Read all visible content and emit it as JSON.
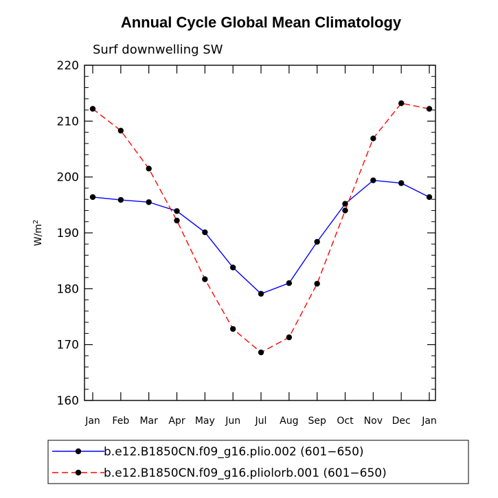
{
  "chart_data": {
    "type": "line",
    "title": "Annual Cycle Global Mean Climatology",
    "subtitle": "Surf downwelling SW",
    "ylabel": "W/m",
    "ylabel_sup": "2",
    "xlabel": "",
    "ylim": [
      160,
      220
    ],
    "yticks": [
      160,
      170,
      180,
      190,
      200,
      210,
      220
    ],
    "categories": [
      "Jan",
      "Feb",
      "Mar",
      "Apr",
      "May",
      "Jun",
      "Jul",
      "Aug",
      "Sep",
      "Oct",
      "Nov",
      "Dec",
      "Jan"
    ],
    "series": [
      {
        "name": "b.e12.B1850CN.f09_g16.plio.002 (601−650)",
        "color": "#0000ff",
        "dash": "solid",
        "values": [
          196.4,
          195.9,
          195.5,
          193.9,
          190.1,
          183.8,
          179.1,
          181.0,
          188.4,
          195.2,
          199.4,
          198.9,
          196.4
        ]
      },
      {
        "name": "b.e12.B1850CN.f09_g16.pliolorb.001 (601−650)",
        "color": "#ff0000",
        "dash": "dashed",
        "values": [
          212.2,
          208.3,
          201.5,
          192.2,
          181.7,
          172.8,
          168.6,
          171.3,
          180.9,
          194.0,
          206.9,
          213.2,
          212.2
        ]
      }
    ],
    "grid": false,
    "legend_position": "bottom"
  }
}
